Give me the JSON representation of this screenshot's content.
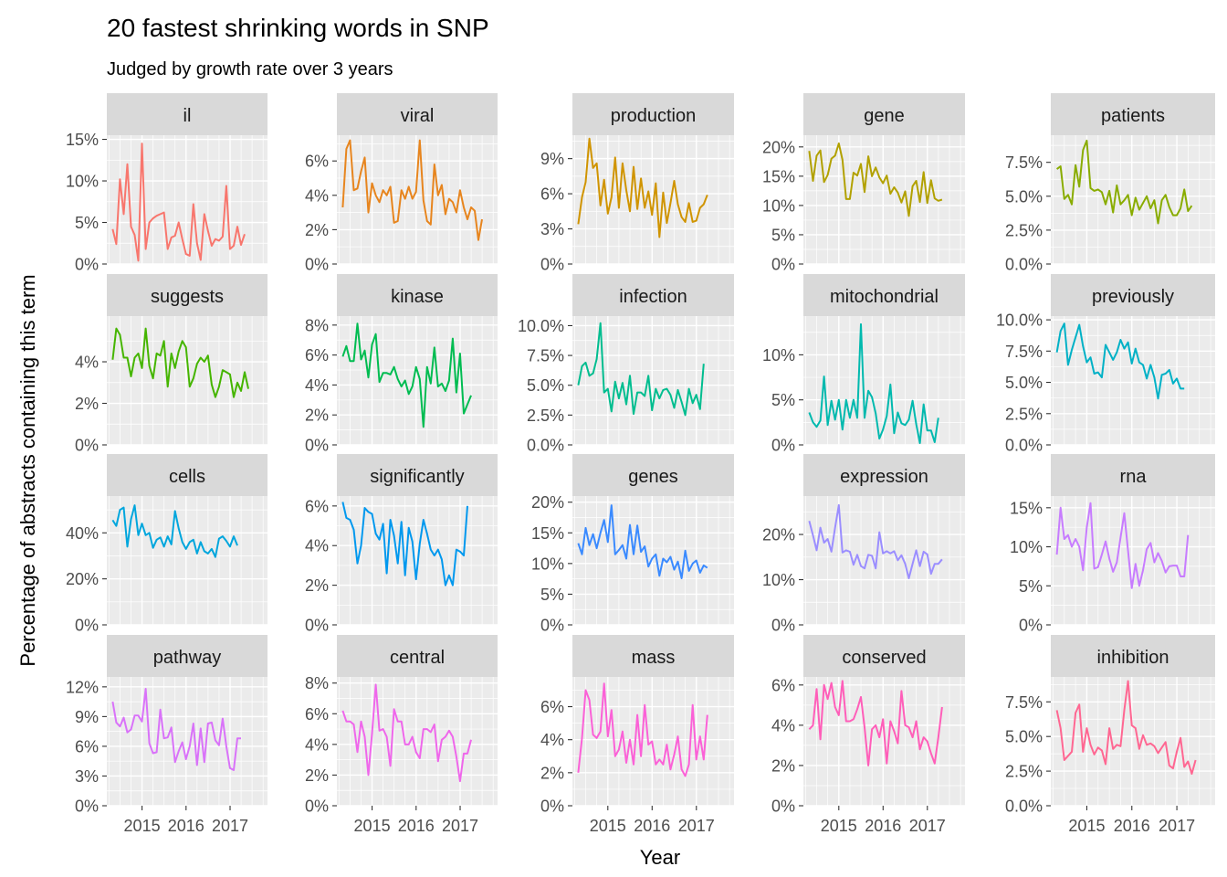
{
  "chart_data": {
    "type": "line",
    "title": "20 fastest shrinking words in SNP",
    "subtitle": "Judged by growth rate over 3 years",
    "xlabel": "Year",
    "ylabel": "Percentage of abstracts containing this term",
    "x_ticks": [
      2015,
      2016,
      2017
    ],
    "xlim": [
      2014.2,
      2017.85
    ],
    "x_start": 2014.333,
    "x_step": 0.0833,
    "grid": true,
    "layout": "facet_wrap 4 rows x 5 columns, free y scales",
    "facets": [
      {
        "name": "il",
        "color": "#F8766D",
        "ylim": [
          0,
          15.5
        ],
        "yticks": [
          0,
          5,
          10,
          15
        ],
        "tick_labels": [
          "0%",
          "5%",
          "10%",
          "15%"
        ],
        "values": [
          4.2,
          2.4,
          10.2,
          6.0,
          12.0,
          4.5,
          3.5,
          0.4,
          14.5,
          1.8,
          5.0,
          5.5,
          5.8,
          6.0,
          6.2,
          1.8,
          3.2,
          3.4,
          5.0,
          3.0,
          1.2,
          1.0,
          7.2,
          2.5,
          0.5,
          6.0,
          4.0,
          2.2,
          3.0,
          2.8,
          3.3,
          9.4,
          1.8,
          2.2,
          4.5,
          2.3,
          3.6
        ]
      },
      {
        "name": "viral",
        "color": "#E7851E",
        "ylim": [
          0,
          7.5
        ],
        "yticks": [
          0,
          2,
          4,
          6
        ],
        "tick_labels": [
          "0%",
          "2%",
          "4%",
          "6%"
        ],
        "values": [
          3.3,
          6.7,
          7.2,
          4.3,
          4.4,
          5.4,
          6.2,
          3.0,
          4.7,
          4.0,
          3.6,
          4.3,
          4.0,
          4.5,
          2.4,
          2.5,
          4.3,
          3.8,
          4.5,
          3.8,
          4.2,
          7.2,
          3.7,
          2.5,
          2.3,
          5.8,
          4.0,
          4.6,
          2.9,
          3.8,
          3.6,
          3.0,
          4.3,
          3.3,
          2.6,
          3.3,
          3.1,
          1.4,
          2.6
        ]
      },
      {
        "name": "production",
        "color": "#D09400",
        "ylim": [
          0,
          11
        ],
        "yticks": [
          0,
          3,
          6,
          9
        ],
        "tick_labels": [
          "0%",
          "3%",
          "6%",
          "9%"
        ],
        "values": [
          3.4,
          5.7,
          7.0,
          10.7,
          8.2,
          8.6,
          5.0,
          7.2,
          4.3,
          5.7,
          9.1,
          4.8,
          8.6,
          6.3,
          4.5,
          8.3,
          4.7,
          7.3,
          4.8,
          6.2,
          4.2,
          6.9,
          2.3,
          6.1,
          3.5,
          5.2,
          7.1,
          5.1,
          4.0,
          3.6,
          5.2,
          3.6,
          3.7,
          4.8,
          5.1,
          5.9
        ]
      },
      {
        "name": "gene",
        "color": "#B2A100",
        "ylim": [
          0,
          22
        ],
        "yticks": [
          0,
          5,
          10,
          15,
          20
        ],
        "tick_labels": [
          "0%",
          "5%",
          "10%",
          "15%",
          "20%"
        ],
        "values": [
          19.3,
          14.2,
          18.5,
          19.4,
          14.0,
          15.2,
          18.0,
          18.5,
          20.6,
          17.8,
          11.1,
          11.1,
          15.6,
          15.1,
          17.1,
          12.3,
          18.4,
          15.0,
          16.5,
          14.8,
          13.8,
          15.1,
          12.0,
          13.1,
          12.2,
          10.5,
          12.4,
          8.2,
          13.3,
          14.2,
          10.6,
          15.7,
          10.4,
          14.3,
          11.2,
          10.8,
          11.0
        ]
      },
      {
        "name": "patients",
        "color": "#89AC00",
        "ylim": [
          0,
          9.5
        ],
        "yticks": [
          0,
          2.5,
          5,
          7.5
        ],
        "tick_labels": [
          "0.0%",
          "2.5%",
          "5.0%",
          "7.5%"
        ],
        "values": [
          7.0,
          7.2,
          4.8,
          5.1,
          4.4,
          7.3,
          5.7,
          8.4,
          9.1,
          5.6,
          5.4,
          5.5,
          5.3,
          4.4,
          5.4,
          3.8,
          5.8,
          4.4,
          4.7,
          5.1,
          3.6,
          4.9,
          4.0,
          4.5,
          5.0,
          4.1,
          4.7,
          3.0,
          4.7,
          5.1,
          4.2,
          3.6,
          3.6,
          4.1,
          5.5,
          3.9,
          4.3
        ]
      },
      {
        "name": "suggests",
        "color": "#45B500",
        "ylim": [
          0,
          6.2
        ],
        "yticks": [
          0,
          2,
          4
        ],
        "tick_labels": [
          "0%",
          "2%",
          "4%"
        ],
        "values": [
          4.1,
          5.6,
          5.3,
          4.2,
          4.2,
          3.3,
          4.2,
          4.4,
          3.7,
          5.6,
          3.8,
          3.2,
          4.4,
          4.3,
          5.0,
          2.8,
          4.4,
          3.7,
          4.5,
          5.0,
          4.7,
          2.8,
          3.2,
          3.9,
          4.2,
          4.0,
          4.3,
          2.9,
          2.3,
          2.8,
          3.6,
          3.5,
          3.4,
          2.3,
          3.0,
          2.6,
          3.5,
          2.7
        ]
      },
      {
        "name": "kinase",
        "color": "#00BC51",
        "ylim": [
          0,
          8.6
        ],
        "yticks": [
          0,
          2,
          4,
          6,
          8
        ],
        "tick_labels": [
          "0%",
          "2%",
          "4%",
          "6%",
          "8%"
        ],
        "values": [
          5.9,
          6.6,
          5.6,
          5.6,
          8.1,
          5.7,
          6.3,
          4.5,
          6.7,
          7.4,
          4.2,
          4.8,
          4.8,
          4.7,
          5.2,
          4.4,
          3.9,
          4.3,
          3.4,
          3.9,
          5.2,
          4.4,
          1.2,
          5.2,
          4.1,
          6.5,
          3.9,
          4.1,
          3.6,
          4.3,
          7.1,
          3.5,
          6.1,
          2.1,
          2.7,
          3.3
        ]
      },
      {
        "name": "infection",
        "color": "#00BD8F",
        "ylim": [
          0,
          10.8
        ],
        "yticks": [
          0,
          2.5,
          5,
          7.5,
          10
        ],
        "tick_labels": [
          "0.0%",
          "2.5%",
          "5.0%",
          "7.5%",
          "10.0%"
        ],
        "values": [
          5.0,
          6.6,
          6.9,
          5.8,
          6.0,
          7.2,
          10.2,
          4.4,
          4.7,
          2.8,
          5.3,
          3.9,
          5.2,
          3.4,
          5.8,
          2.6,
          4.4,
          4.4,
          4.1,
          5.8,
          2.9,
          4.7,
          3.9,
          4.6,
          4.7,
          4.2,
          3.1,
          4.6,
          3.6,
          2.5,
          4.7,
          3.5,
          4.2,
          3.0,
          6.8
        ]
      },
      {
        "name": "mitochondrial",
        "color": "#00B9AE",
        "ylim": [
          0,
          14.3
        ],
        "yticks": [
          0,
          5,
          10
        ],
        "tick_labels": [
          "0%",
          "5%",
          "10%"
        ],
        "values": [
          3.6,
          2.5,
          2.0,
          2.7,
          7.6,
          2.2,
          4.9,
          2.8,
          5.0,
          1.7,
          5.0,
          3.0,
          5.0,
          3.0,
          13.4,
          3.0,
          6.0,
          5.3,
          3.5,
          0.7,
          1.7,
          3.2,
          6.7,
          1.3,
          3.6,
          2.4,
          2.2,
          2.8,
          4.9,
          2.3,
          0.2,
          4.5,
          1.6,
          1.6,
          0.3,
          3.0
        ]
      },
      {
        "name": "previously",
        "color": "#00B1C6",
        "ylim": [
          0,
          10.3
        ],
        "yticks": [
          0,
          2.5,
          5,
          7.5,
          10
        ],
        "tick_labels": [
          "0.0%",
          "2.5%",
          "5.0%",
          "7.5%",
          "10.0%"
        ],
        "values": [
          7.4,
          9.1,
          9.7,
          6.4,
          7.6,
          8.6,
          9.6,
          7.9,
          6.6,
          7.0,
          5.7,
          5.8,
          5.4,
          8.0,
          7.4,
          6.8,
          7.4,
          8.4,
          7.7,
          8.2,
          6.5,
          7.7,
          6.6,
          6.4,
          5.3,
          6.4,
          5.4,
          3.7,
          5.6,
          5.7,
          6.0,
          4.9,
          5.3,
          4.5,
          4.5
        ]
      },
      {
        "name": "cells",
        "color": "#00A6DD",
        "ylim": [
          0,
          56
        ],
        "yticks": [
          0,
          20,
          40
        ],
        "tick_labels": [
          "0%",
          "20%",
          "40%"
        ],
        "values": [
          45.5,
          43.0,
          50.0,
          51.0,
          34.0,
          46.0,
          52.0,
          39.0,
          44.0,
          39.0,
          40.0,
          33.5,
          37.0,
          38.0,
          34.0,
          38.5,
          35.0,
          49.5,
          42.0,
          36.0,
          33.0,
          36.0,
          37.0,
          31.0,
          36.0,
          32.0,
          31.0,
          33.0,
          29.5,
          37.5,
          38.5,
          36.5,
          34.0,
          38.5,
          34.5
        ]
      },
      {
        "name": "significantly",
        "color": "#0098EE",
        "ylim": [
          0,
          6.5
        ],
        "yticks": [
          0,
          2,
          4,
          6
        ],
        "tick_labels": [
          "0%",
          "2%",
          "4%",
          "6%"
        ],
        "values": [
          6.2,
          5.4,
          5.3,
          4.8,
          3.1,
          4.0,
          5.9,
          5.7,
          5.6,
          4.6,
          4.3,
          5.1,
          2.6,
          5.3,
          4.5,
          3.1,
          5.2,
          2.5,
          4.9,
          4.2,
          2.3,
          4.1,
          5.3,
          4.6,
          3.8,
          3.5,
          3.8,
          3.3,
          2.0,
          2.5,
          2.0,
          3.8,
          3.7,
          3.5,
          6.0
        ]
      },
      {
        "name": "genes",
        "color": "#3A8AFF",
        "ylim": [
          0,
          21
        ],
        "yticks": [
          0,
          5,
          10,
          15,
          20
        ],
        "tick_labels": [
          "0%",
          "5%",
          "10%",
          "15%",
          "20%"
        ],
        "values": [
          13.3,
          11.5,
          15.8,
          13.0,
          14.8,
          12.5,
          15.0,
          17.1,
          13.5,
          19.5,
          11.5,
          12.2,
          13.0,
          10.8,
          16.3,
          11.5,
          16.2,
          11.9,
          12.8,
          9.5,
          10.8,
          11.5,
          8.0,
          10.8,
          10.2,
          11.1,
          9.0,
          10.3,
          7.6,
          12.1,
          8.8,
          10.0,
          10.5,
          8.5,
          9.7,
          9.3
        ]
      },
      {
        "name": "expression",
        "color": "#9B8EFF",
        "ylim": [
          0,
          28.5
        ],
        "yticks": [
          0,
          10,
          20
        ],
        "tick_labels": [
          "0%",
          "10%",
          "20%"
        ],
        "values": [
          23.0,
          19.8,
          16.5,
          21.5,
          18.2,
          19.0,
          16.2,
          21.5,
          26.5,
          16.0,
          16.5,
          16.2,
          13.3,
          15.5,
          13.0,
          12.5,
          15.5,
          15.3,
          12.5,
          20.5,
          15.8,
          16.3,
          15.8,
          16.3,
          14.3,
          15.4,
          13.5,
          10.3,
          13.5,
          16.5,
          13.0,
          16.2,
          15.6,
          11.3,
          13.5,
          13.5,
          14.5
        ]
      },
      {
        "name": "rna",
        "color": "#C77CFF",
        "ylim": [
          0,
          16.5
        ],
        "yticks": [
          0,
          5,
          10,
          15
        ],
        "tick_labels": [
          "0%",
          "5%",
          "10%",
          "15%"
        ],
        "values": [
          9.0,
          15.0,
          11.0,
          11.5,
          10.0,
          11.0,
          10.0,
          7.0,
          12.5,
          15.6,
          7.2,
          7.4,
          9.0,
          10.7,
          8.5,
          6.8,
          8.0,
          11.2,
          14.3,
          9.5,
          4.7,
          7.8,
          5.0,
          7.0,
          9.7,
          10.5,
          8.0,
          9.2,
          8.2,
          6.7,
          7.5,
          7.6,
          7.6,
          6.2,
          6.2,
          11.5
        ]
      },
      {
        "name": "pathway",
        "color": "#D972F9",
        "ylim": [
          0,
          13
        ],
        "yticks": [
          0,
          3,
          6,
          9,
          12
        ],
        "tick_labels": [
          "0%",
          "3%",
          "6%",
          "9%",
          "12%"
        ],
        "values": [
          10.5,
          8.4,
          8.0,
          8.9,
          7.4,
          7.7,
          9.1,
          9.1,
          8.5,
          11.8,
          6.3,
          5.3,
          5.4,
          9.7,
          6.8,
          6.9,
          7.9,
          4.4,
          5.5,
          6.4,
          4.7,
          6.0,
          8.3,
          4.1,
          7.8,
          4.4,
          8.3,
          8.4,
          6.6,
          6.1,
          8.8,
          6.0,
          3.8,
          3.6,
          6.8,
          6.8
        ]
      },
      {
        "name": "central",
        "color": "#EF67EB",
        "ylim": [
          0,
          8.4
        ],
        "yticks": [
          0,
          2,
          4,
          6,
          8
        ],
        "tick_labels": [
          "0%",
          "2%",
          "4%",
          "6%",
          "8%"
        ],
        "values": [
          6.2,
          5.5,
          5.5,
          5.3,
          3.5,
          5.5,
          4.5,
          2.0,
          4.7,
          7.9,
          4.9,
          5.0,
          4.5,
          2.6,
          6.3,
          5.5,
          5.5,
          4.0,
          4.0,
          4.5,
          3.5,
          3.1,
          5.0,
          5.0,
          4.8,
          5.3,
          2.9,
          4.3,
          4.5,
          4.9,
          4.5,
          3.2,
          1.6,
          3.4,
          3.4,
          4.3
        ]
      },
      {
        "name": "mass",
        "color": "#FB61D7",
        "ylim": [
          0,
          7.8
        ],
        "yticks": [
          0,
          2,
          4,
          6
        ],
        "tick_labels": [
          "0%",
          "2%",
          "4%",
          "6%"
        ],
        "values": [
          2.0,
          4.1,
          7.0,
          6.4,
          4.3,
          4.1,
          4.5,
          7.4,
          4.2,
          5.8,
          3.0,
          3.4,
          4.5,
          2.6,
          4.0,
          2.5,
          5.5,
          3.0,
          6.1,
          3.7,
          3.9,
          2.5,
          2.8,
          2.5,
          3.7,
          2.2,
          3.1,
          4.2,
          2.2,
          1.8,
          2.5,
          6.1,
          2.8,
          4.2,
          2.8,
          5.5
        ]
      },
      {
        "name": "conserved",
        "color": "#FF5EB9",
        "ylim": [
          0,
          6.4
        ],
        "yticks": [
          0,
          2,
          4,
          6
        ],
        "tick_labels": [
          "0%",
          "2%",
          "4%",
          "6%"
        ],
        "values": [
          3.8,
          4.0,
          5.8,
          3.3,
          6.0,
          5.3,
          6.1,
          4.9,
          4.5,
          6.2,
          4.2,
          4.2,
          4.3,
          4.8,
          5.4,
          3.9,
          2.0,
          3.8,
          4.0,
          3.4,
          4.3,
          2.1,
          4.2,
          3.7,
          3.1,
          5.7,
          4.0,
          3.9,
          3.4,
          4.2,
          2.8,
          3.4,
          3.2,
          2.6,
          2.1,
          3.4,
          4.9
        ]
      },
      {
        "name": "inhibition",
        "color": "#FF6792",
        "ylim": [
          0,
          9.3
        ],
        "yticks": [
          0,
          2.5,
          5,
          7.5
        ],
        "tick_labels": [
          "0.0%",
          "2.5%",
          "5.0%",
          "7.5%"
        ],
        "values": [
          6.9,
          5.6,
          3.3,
          3.6,
          3.9,
          6.7,
          7.3,
          3.9,
          5.6,
          4.4,
          3.7,
          4.2,
          4.0,
          3.0,
          5.6,
          4.1,
          4.4,
          4.3,
          6.9,
          9.0,
          5.8,
          5.6,
          4.1,
          5.1,
          4.4,
          4.5,
          4.3,
          3.8,
          4.2,
          4.6,
          2.9,
          2.7,
          3.9,
          4.9,
          2.8,
          3.2,
          2.3,
          3.3
        ]
      }
    ]
  }
}
